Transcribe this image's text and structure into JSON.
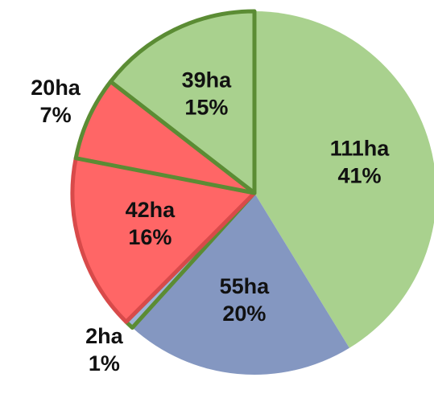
{
  "chart_data": {
    "type": "pie",
    "categories": [
      "111ha",
      "55ha",
      "2ha",
      "42ha",
      "20ha",
      "39ha"
    ],
    "values": [
      111,
      55,
      2,
      42,
      20,
      39
    ],
    "value_labels": [
      "111ha",
      "55ha",
      "2ha",
      "42ha",
      "20ha",
      "39ha"
    ],
    "percent_labels": [
      "41%",
      "20%",
      "1%",
      "16%",
      "7%",
      "15%"
    ],
    "colors": [
      "#a9d18e",
      "#8497c1",
      "#9db3d8",
      "#ff6666",
      "#ff6666",
      "#a9d18e"
    ],
    "edgecolors": [
      null,
      null,
      "#5b8c34",
      "#d84a4a",
      "#5b8c34",
      "#5b8c34"
    ]
  }
}
